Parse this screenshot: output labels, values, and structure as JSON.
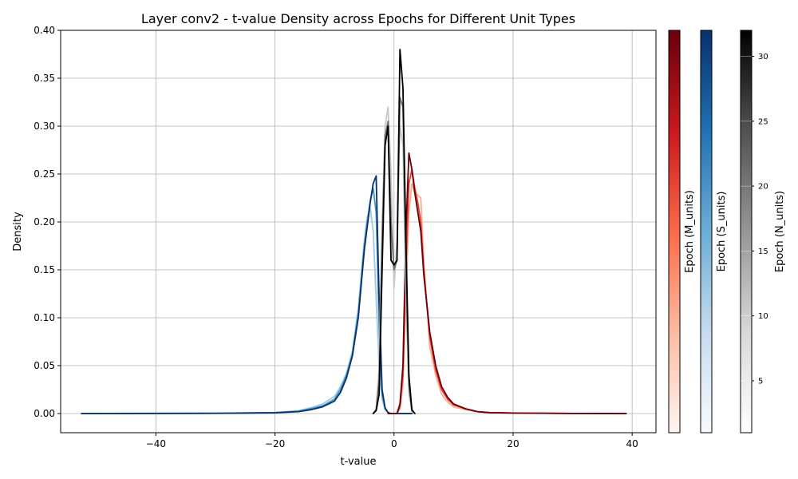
{
  "chart_data": {
    "type": "line",
    "title": "Layer conv2 - t-value Density across Epochs for Different Unit Types",
    "xlabel": "t-value",
    "ylabel": "Density",
    "xlim": [
      -56,
      44
    ],
    "ylim": [
      -0.02,
      0.4
    ],
    "xticks": [
      -40,
      -20,
      0,
      20,
      40
    ],
    "xtick_labels": [
      "−40",
      "−20",
      "0",
      "20",
      "40"
    ],
    "yticks": [
      0.0,
      0.05,
      0.1,
      0.15,
      0.2,
      0.25,
      0.3,
      0.35,
      0.4
    ],
    "ytick_labels": [
      "0.00",
      "0.05",
      "0.10",
      "0.15",
      "0.20",
      "0.25",
      "0.30",
      "0.35",
      "0.40"
    ],
    "grid": true,
    "colorbars": [
      {
        "label": "Epoch (M_units)",
        "colormap": "Reds",
        "min": 1,
        "max": 32,
        "ticks": []
      },
      {
        "label": "Epoch (S_units)",
        "colormap": "Blues",
        "min": 1,
        "max": 32,
        "ticks": []
      },
      {
        "label": "Epoch (N_units)",
        "colormap": "Greys",
        "min": 1,
        "max": 32,
        "ticks": [
          5,
          10,
          15,
          20,
          25,
          30
        ]
      }
    ],
    "series": [
      {
        "group": "S_units",
        "epoch": "early",
        "color": "#9ecae1",
        "x": [
          -52.5,
          -30,
          -20,
          -16,
          -14,
          -12,
          -10,
          -9,
          -8,
          -7,
          -6,
          -5,
          -4.5,
          -4,
          -3.5,
          -3,
          -2.5,
          -2,
          -1.5,
          -1,
          -0.5,
          0,
          1,
          3
        ],
        "y": [
          0,
          0.0003,
          0.001,
          0.003,
          0.006,
          0.01,
          0.018,
          0.028,
          0.042,
          0.065,
          0.11,
          0.18,
          0.205,
          0.215,
          0.19,
          0.12,
          0.05,
          0.015,
          0.004,
          0.001,
          0,
          0,
          0,
          0
        ]
      },
      {
        "group": "S_units",
        "epoch": "mid",
        "color": "#4292c6",
        "x": [
          -52.5,
          -30,
          -20,
          -16,
          -14,
          -12,
          -10,
          -9,
          -8,
          -7,
          -6,
          -5,
          -4.5,
          -4,
          -3.5,
          -3,
          -2.5,
          -2,
          -1.5,
          -1,
          -0.5,
          0,
          1,
          3
        ],
        "y": [
          0,
          0.0003,
          0.0009,
          0.0025,
          0.005,
          0.008,
          0.015,
          0.025,
          0.04,
          0.062,
          0.105,
          0.175,
          0.2,
          0.222,
          0.235,
          0.21,
          0.09,
          0.02,
          0.005,
          0.001,
          0,
          0,
          0,
          0
        ]
      },
      {
        "group": "S_units",
        "epoch": "late",
        "color": "#08306b",
        "x": [
          -52.5,
          -30,
          -20,
          -16,
          -14,
          -12,
          -10,
          -9,
          -8,
          -7,
          -6,
          -5,
          -4.5,
          -4,
          -3.5,
          -3,
          -2.5,
          -2,
          -1.5,
          -1,
          -0.5,
          0,
          1,
          3
        ],
        "y": [
          0,
          0.0002,
          0.0008,
          0.002,
          0.004,
          0.007,
          0.013,
          0.022,
          0.037,
          0.06,
          0.1,
          0.17,
          0.195,
          0.22,
          0.24,
          0.248,
          0.12,
          0.025,
          0.006,
          0.001,
          0,
          0,
          0,
          0
        ]
      },
      {
        "group": "M_units",
        "epoch": "early",
        "color": "#fcae91",
        "x": [
          -1,
          0,
          0.5,
          1,
          1.5,
          2,
          2.5,
          3,
          3.5,
          4,
          4.5,
          5,
          6,
          7,
          8,
          9,
          10,
          12,
          14,
          16,
          20,
          25,
          30,
          39
        ],
        "y": [
          0,
          0,
          0,
          0.005,
          0.03,
          0.12,
          0.21,
          0.24,
          0.23,
          0.228,
          0.225,
          0.16,
          0.07,
          0.04,
          0.02,
          0.012,
          0.007,
          0.004,
          0.002,
          0.001,
          0.0005,
          0.0003,
          0.0001,
          0
        ]
      },
      {
        "group": "M_units",
        "epoch": "mid",
        "color": "#ef3b2c",
        "x": [
          -1,
          0,
          0.5,
          1,
          1.5,
          2,
          2.5,
          3,
          3.5,
          4,
          4.5,
          5,
          6,
          7,
          8,
          9,
          10,
          12,
          14,
          16,
          20,
          25,
          30,
          39
        ],
        "y": [
          0,
          0,
          0,
          0.007,
          0.04,
          0.15,
          0.24,
          0.255,
          0.235,
          0.22,
          0.2,
          0.15,
          0.08,
          0.045,
          0.025,
          0.015,
          0.009,
          0.005,
          0.002,
          0.001,
          0.0005,
          0.0003,
          0.0001,
          0
        ]
      },
      {
        "group": "M_units",
        "epoch": "late",
        "color": "#67000d",
        "x": [
          -1,
          0,
          0.5,
          1,
          1.5,
          2,
          2.5,
          3,
          3.5,
          4,
          4.5,
          5,
          6,
          7,
          8,
          9,
          10,
          12,
          14,
          16,
          20,
          25,
          30,
          39
        ],
        "y": [
          0,
          0,
          0,
          0.01,
          0.05,
          0.19,
          0.272,
          0.255,
          0.23,
          0.21,
          0.19,
          0.145,
          0.085,
          0.05,
          0.028,
          0.017,
          0.01,
          0.005,
          0.002,
          0.001,
          0.0005,
          0.0003,
          0.0001,
          0
        ]
      },
      {
        "group": "N_units",
        "epoch": "early",
        "color": "#c8c8c8",
        "x": [
          -3.5,
          -3,
          -2.5,
          -2,
          -1.5,
          -1,
          -0.5,
          0,
          0.5,
          1,
          1.5,
          2,
          2.5,
          3,
          3.5
        ],
        "y": [
          0,
          0.005,
          0.05,
          0.2,
          0.3,
          0.32,
          0.25,
          0.13,
          0.18,
          0.3,
          0.28,
          0.12,
          0.02,
          0.002,
          0
        ]
      },
      {
        "group": "N_units",
        "epoch": "mid",
        "color": "#6e6e6e",
        "x": [
          -3.5,
          -3,
          -2.5,
          -2,
          -1.5,
          -1,
          -0.5,
          0,
          0.5,
          1,
          1.5,
          2,
          2.5,
          3,
          3.5
        ],
        "y": [
          0,
          0.004,
          0.035,
          0.18,
          0.29,
          0.305,
          0.2,
          0.15,
          0.16,
          0.33,
          0.32,
          0.15,
          0.03,
          0.003,
          0
        ]
      },
      {
        "group": "N_units",
        "epoch": "late",
        "color": "#000000",
        "x": [
          -3.5,
          -3,
          -2.5,
          -2,
          -1.5,
          -1,
          -0.5,
          0,
          0.5,
          1,
          1.5,
          2,
          2.5,
          3,
          3.5
        ],
        "y": [
          0,
          0.003,
          0.02,
          0.15,
          0.28,
          0.3,
          0.16,
          0.155,
          0.16,
          0.38,
          0.34,
          0.18,
          0.04,
          0.004,
          0
        ]
      }
    ]
  }
}
